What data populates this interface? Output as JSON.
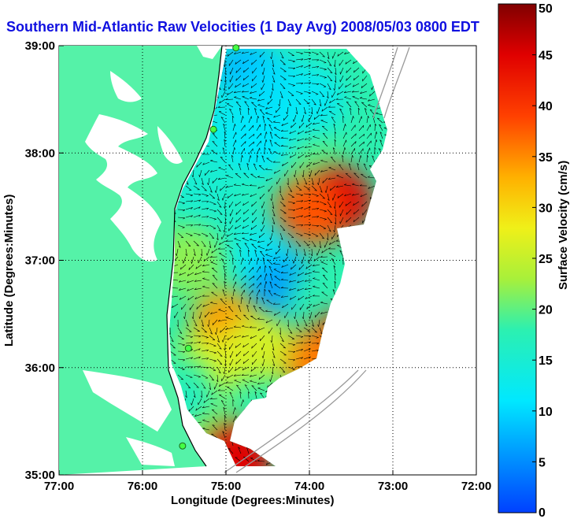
{
  "chart_data": {
    "type": "heatmap",
    "title": "Southern Mid-Atlantic Raw Velocities (1 Day Avg) 2008/05/03 0800 EDT",
    "xlabel": "Longitude (Degrees:Minutes)",
    "ylabel": "Latitude (Degrees:Minutes)",
    "x_ticks": [
      "77:00",
      "76:00",
      "75:00",
      "74:00",
      "73:00",
      "72:00"
    ],
    "y_ticks": [
      "39:00",
      "38:00",
      "37:00",
      "36:00",
      "35:00"
    ],
    "xlim": [
      -77,
      -72
    ],
    "ylim": [
      35,
      39
    ],
    "grid": "dotted",
    "colorbar": {
      "label": "Surface Velocity (cm/s)",
      "range": [
        0,
        50
      ],
      "ticks": [
        "50",
        "45",
        "40",
        "35",
        "30",
        "25",
        "20",
        "15",
        "10",
        "5",
        "0"
      ],
      "colormap": "jet"
    },
    "land_color": "#55f2a8",
    "stations": [
      {
        "lon": -74.88,
        "lat": 38.98
      },
      {
        "lon": -75.15,
        "lat": 38.22
      },
      {
        "lon": -75.45,
        "lat": 36.18
      },
      {
        "lon": -75.52,
        "lat": 35.27
      }
    ],
    "velocity_field": [
      {
        "lon": -74.75,
        "lat": 38.75,
        "speed": 8
      },
      {
        "lon": -74.4,
        "lat": 38.6,
        "speed": 10
      },
      {
        "lon": -74.0,
        "lat": 38.5,
        "speed": 12
      },
      {
        "lon": -75.0,
        "lat": 38.3,
        "speed": 13
      },
      {
        "lon": -74.6,
        "lat": 38.1,
        "speed": 11
      },
      {
        "lon": -73.9,
        "lat": 37.8,
        "speed": 20
      },
      {
        "lon": -73.65,
        "lat": 37.55,
        "speed": 45
      },
      {
        "lon": -74.0,
        "lat": 37.45,
        "speed": 38
      },
      {
        "lon": -75.3,
        "lat": 37.7,
        "speed": 15
      },
      {
        "lon": -74.8,
        "lat": 37.3,
        "speed": 16
      },
      {
        "lon": -75.45,
        "lat": 37.0,
        "speed": 22
      },
      {
        "lon": -74.5,
        "lat": 37.0,
        "speed": 12
      },
      {
        "lon": -74.3,
        "lat": 36.7,
        "speed": 6
      },
      {
        "lon": -73.85,
        "lat": 36.6,
        "speed": 18
      },
      {
        "lon": -73.6,
        "lat": 36.2,
        "speed": 42
      },
      {
        "lon": -73.9,
        "lat": 36.05,
        "speed": 36
      },
      {
        "lon": -75.0,
        "lat": 36.4,
        "speed": 34
      },
      {
        "lon": -74.6,
        "lat": 36.2,
        "speed": 26
      },
      {
        "lon": -75.25,
        "lat": 36.0,
        "speed": 27
      },
      {
        "lon": -75.55,
        "lat": 35.8,
        "speed": 18
      },
      {
        "lon": -75.35,
        "lat": 35.45,
        "speed": 15
      },
      {
        "lon": -75.1,
        "lat": 35.3,
        "speed": 22
      },
      {
        "lon": -74.85,
        "lat": 35.15,
        "speed": 45
      }
    ]
  }
}
